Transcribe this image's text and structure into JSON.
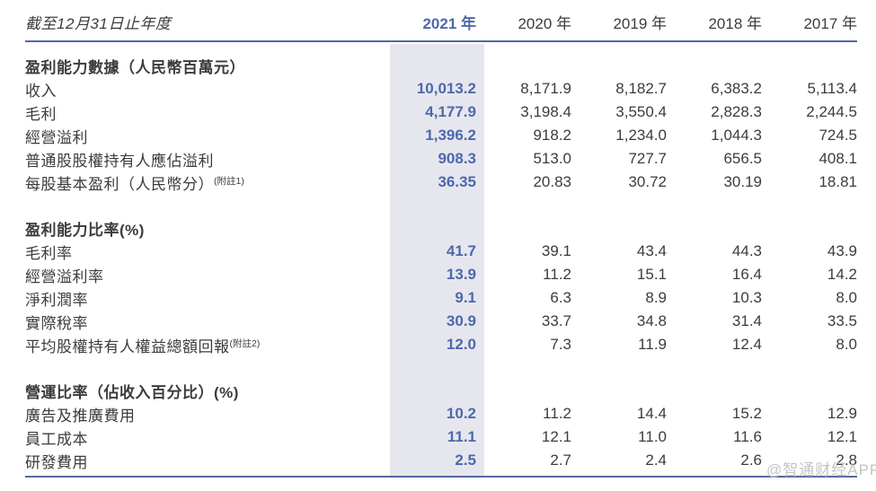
{
  "watermark": "@智通财经APP",
  "table": {
    "period_label": "截至12月31日止年度",
    "years": [
      "2021 年",
      "2020 年",
      "2019 年",
      "2018 年",
      "2017 年"
    ],
    "highlight_year": "2021",
    "colors": {
      "accent_blue": "#4e68ab",
      "highlight_bg": "#e6e7ee",
      "rule_blue": "#54699f",
      "text": "#3c3c3c"
    },
    "sections": [
      {
        "title": "盈利能力數據（人民幣百萬元）",
        "rows": [
          {
            "label": "收入",
            "note": "",
            "values": [
              "10,013.2",
              "8,171.9",
              "8,182.7",
              "6,383.2",
              "5,113.4"
            ]
          },
          {
            "label": "毛利",
            "note": "",
            "values": [
              "4,177.9",
              "3,198.4",
              "3,550.4",
              "2,828.3",
              "2,244.5"
            ]
          },
          {
            "label": "經營溢利",
            "note": "",
            "values": [
              "1,396.2",
              "918.2",
              "1,234.0",
              "1,044.3",
              "724.5"
            ]
          },
          {
            "label": "普通股股權持有人應佔溢利",
            "note": "",
            "values": [
              "908.3",
              "513.0",
              "727.7",
              "656.5",
              "408.1"
            ]
          },
          {
            "label": "每股基本盈利（人民幣分）",
            "note": "(附註1)",
            "values": [
              "36.35",
              "20.83",
              "30.72",
              "30.19",
              "18.81"
            ]
          }
        ]
      },
      {
        "title": "盈利能力比率(%)",
        "rows": [
          {
            "label": "毛利率",
            "note": "",
            "values": [
              "41.7",
              "39.1",
              "43.4",
              "44.3",
              "43.9"
            ]
          },
          {
            "label": "經營溢利率",
            "note": "",
            "values": [
              "13.9",
              "11.2",
              "15.1",
              "16.4",
              "14.2"
            ]
          },
          {
            "label": "淨利潤率",
            "note": "",
            "values": [
              "9.1",
              "6.3",
              "8.9",
              "10.3",
              "8.0"
            ]
          },
          {
            "label": "實際稅率",
            "note": "",
            "values": [
              "30.9",
              "33.7",
              "34.8",
              "31.4",
              "33.5"
            ]
          },
          {
            "label": "平均股權持有人權益總額回報",
            "note": "(附註2)",
            "values": [
              "12.0",
              "7.3",
              "11.9",
              "12.4",
              "8.0"
            ]
          }
        ]
      },
      {
        "title": "營運比率（佔收入百分比）(%)",
        "rows": [
          {
            "label": "廣告及推廣費用",
            "note": "",
            "values": [
              "10.2",
              "11.2",
              "14.4",
              "15.2",
              "12.9"
            ]
          },
          {
            "label": "員工成本",
            "note": "",
            "values": [
              "11.1",
              "12.1",
              "11.0",
              "11.6",
              "12.1"
            ]
          },
          {
            "label": "研發費用",
            "note": "",
            "values": [
              "2.5",
              "2.7",
              "2.4",
              "2.6",
              "2.8"
            ]
          }
        ]
      }
    ]
  }
}
